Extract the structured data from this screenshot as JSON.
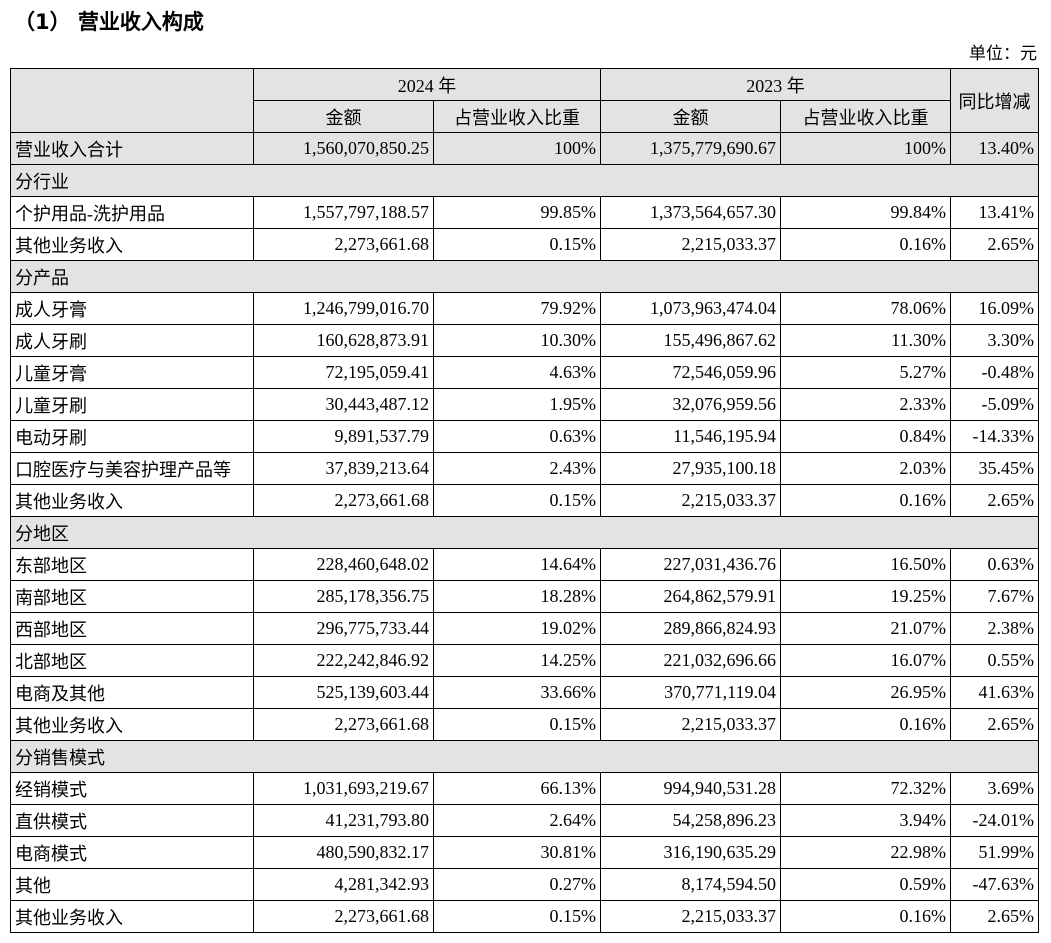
{
  "header": {
    "title": "（1） 营业收入构成",
    "unit": "单位：元"
  },
  "table": {
    "year_headers": [
      "2024 年",
      "2023 年"
    ],
    "yoy_header": "同比增减",
    "sub_headers": [
      "金额",
      "占营业收入比重",
      "金额",
      "占营业收入比重"
    ],
    "rows": [
      [
        "营业收入合计",
        "1,560,070,850.25",
        "100%",
        "1,375,779,690.67",
        "100%",
        "13.40%"
      ],
      [
        "分行业"
      ],
      [
        "个护用品-洗护用品",
        "1,557,797,188.57",
        "99.85%",
        "1,373,564,657.30",
        "99.84%",
        "13.41%"
      ],
      [
        "其他业务收入",
        "2,273,661.68",
        "0.15%",
        "2,215,033.37",
        "0.16%",
        "2.65%"
      ],
      [
        "分产品"
      ],
      [
        "成人牙膏",
        "1,246,799,016.70",
        "79.92%",
        "1,073,963,474.04",
        "78.06%",
        "16.09%"
      ],
      [
        "成人牙刷",
        "160,628,873.91",
        "10.30%",
        "155,496,867.62",
        "11.30%",
        "3.30%"
      ],
      [
        "儿童牙膏",
        "72,195,059.41",
        "4.63%",
        "72,546,059.96",
        "5.27%",
        "-0.48%"
      ],
      [
        "儿童牙刷",
        "30,443,487.12",
        "1.95%",
        "32,076,959.56",
        "2.33%",
        "-5.09%"
      ],
      [
        "电动牙刷",
        "9,891,537.79",
        "0.63%",
        "11,546,195.94",
        "0.84%",
        "-14.33%"
      ],
      [
        "口腔医疗与美容护理产品等",
        "37,839,213.64",
        "2.43%",
        "27,935,100.18",
        "2.03%",
        "35.45%"
      ],
      [
        "其他业务收入",
        "2,273,661.68",
        "0.15%",
        "2,215,033.37",
        "0.16%",
        "2.65%"
      ],
      [
        "分地区"
      ],
      [
        "东部地区",
        "228,460,648.02",
        "14.64%",
        "227,031,436.76",
        "16.50%",
        "0.63%"
      ],
      [
        "南部地区",
        "285,178,356.75",
        "18.28%",
        "264,862,579.91",
        "19.25%",
        "7.67%"
      ],
      [
        "西部地区",
        "296,775,733.44",
        "19.02%",
        "289,866,824.93",
        "21.07%",
        "2.38%"
      ],
      [
        "北部地区",
        "222,242,846.92",
        "14.25%",
        "221,032,696.66",
        "16.07%",
        "0.55%"
      ],
      [
        "电商及其他",
        "525,139,603.44",
        "33.66%",
        "370,771,119.04",
        "26.95%",
        "41.63%"
      ],
      [
        "其他业务收入",
        "2,273,661.68",
        "0.15%",
        "2,215,033.37",
        "0.16%",
        "2.65%"
      ],
      [
        "分销售模式"
      ],
      [
        "经销模式",
        "1,031,693,219.67",
        "66.13%",
        "994,940,531.28",
        "72.32%",
        "3.69%"
      ],
      [
        "直供模式",
        "41,231,793.80",
        "2.64%",
        "54,258,896.23",
        "3.94%",
        "-24.01%"
      ],
      [
        "电商模式",
        "480,590,832.17",
        "30.81%",
        "316,190,635.29",
        "22.98%",
        "51.99%"
      ],
      [
        "其他",
        "4,281,342.93",
        "0.27%",
        "8,174,594.50",
        "0.59%",
        "-47.63%"
      ],
      [
        "其他业务收入",
        "2,273,661.68",
        "0.15%",
        "2,215,033.37",
        "0.16%",
        "2.65%"
      ]
    ]
  }
}
